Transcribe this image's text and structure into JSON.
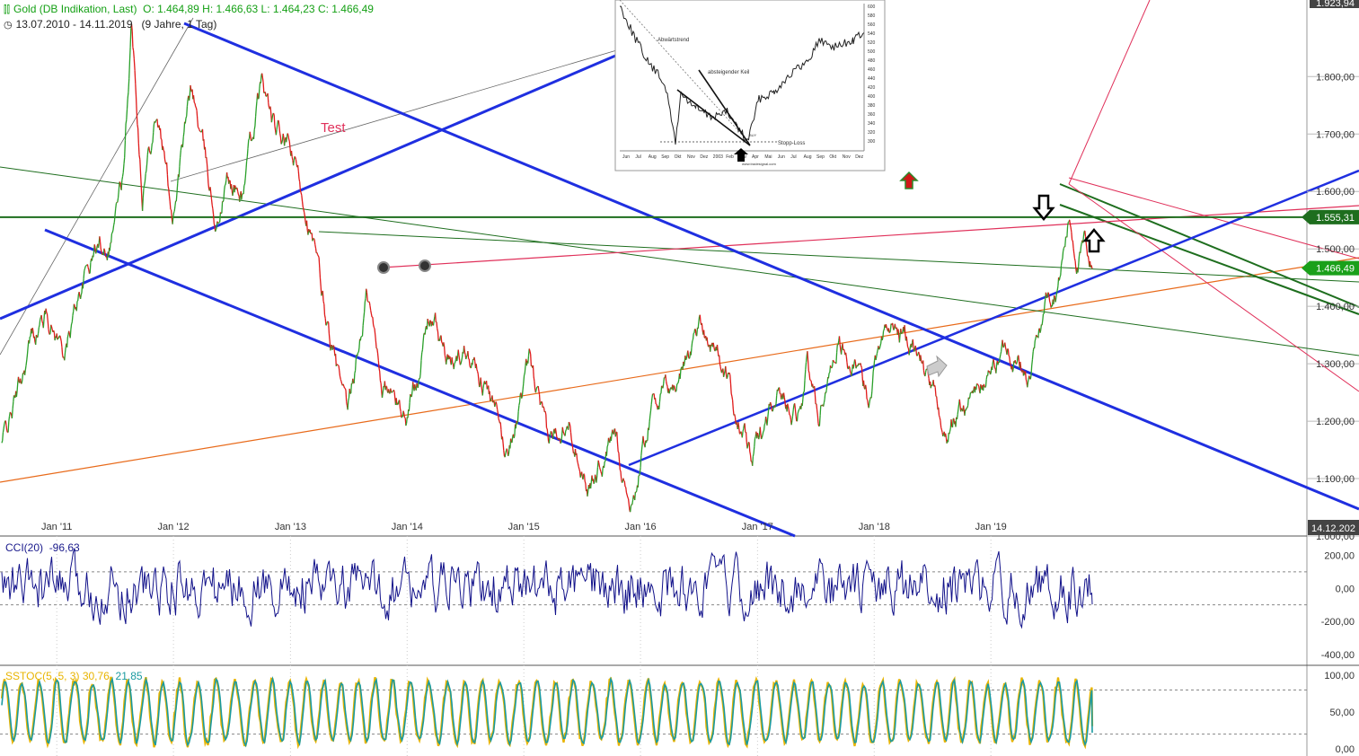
{
  "header": {
    "instrument_icon": "candles-icon",
    "title": "Gold (DB Indikation, Last)",
    "ohlc": "O: 1.464,89  H: 1.466,63  L: 1.464,23  C: 1.466,49",
    "clock_icon": "clock-icon",
    "range": "13.07.2010 - 14.11.2019",
    "period": "(9 Jahre, 1 Tag)"
  },
  "colors": {
    "up": "#2aa02a",
    "down": "#e01a1a",
    "trend_blue": "#1f2fe0",
    "green_line": "#1e6e1e",
    "pink_line": "#e0305a",
    "orange_line": "#e86a1a",
    "cci": "#12128a",
    "stoch_k": "#e8b400",
    "stoch_d": "#1a9aa0",
    "price_badge": "#1aa01a"
  },
  "chart_data": [
    {
      "type": "line",
      "title": "Gold (DB Indikation, Last)",
      "x_tick_labels": [
        "Jan '11",
        "Jan '12",
        "Jan '13",
        "Jan '14",
        "Jan '15",
        "Jan '16",
        "Jan '17",
        "Jan '18",
        "Jan '19"
      ],
      "y_tick_labels": [
        "1.000,00",
        "1.100,00",
        "1.200,00",
        "1.300,00",
        "1.400,00",
        "1.500,00",
        "1.600,00",
        "1.700,00",
        "1.800,00"
      ],
      "ylim": [
        1000,
        1924
      ],
      "axis_top_label": "1.923,94",
      "date_badge": "14.12.202",
      "horizontal_level": {
        "value": 1555.31,
        "label": "1.555,31"
      },
      "last_price": {
        "value": 1466.49,
        "label": "1.466,49"
      },
      "annotation": "Test",
      "series": [
        {
          "x": [
            "2010-07-13",
            "2010-09-01",
            "2010-10-15",
            "2010-12-01",
            "2011-01-28",
            "2011-03-15",
            "2011-05-01",
            "2011-06-15",
            "2011-08-01",
            "2011-08-22",
            "2011-09-06",
            "2011-09-26",
            "2011-11-08",
            "2011-12-29",
            "2012-02-28",
            "2012-05-16",
            "2012-06-15",
            "2012-08-01",
            "2012-10-04",
            "2012-11-15",
            "2012-12-31",
            "2013-02-20",
            "2013-04-15",
            "2013-06-28",
            "2013-08-28",
            "2013-10-15",
            "2013-12-31",
            "2014-03-14",
            "2014-05-15",
            "2014-07-10",
            "2014-09-01",
            "2014-11-06",
            "2015-01-22",
            "2015-03-17",
            "2015-05-18",
            "2015-07-24",
            "2015-10-14",
            "2015-12-03",
            "2016-02-11",
            "2016-04-20",
            "2016-07-06",
            "2016-09-01",
            "2016-10-06",
            "2016-12-15",
            "2017-02-27",
            "2017-05-09",
            "2017-06-06",
            "2017-07-10",
            "2017-09-08",
            "2017-12-12",
            "2018-01-25",
            "2018-04-11",
            "2018-06-01",
            "2018-08-16",
            "2018-10-15",
            "2018-12-31",
            "2019-02-20",
            "2019-05-02",
            "2019-06-25",
            "2019-08-01",
            "2019-09-04",
            "2019-10-01",
            "2019-10-25",
            "2019-11-14"
          ],
          "y": [
            1160,
            1250,
            1345,
            1390,
            1320,
            1430,
            1500,
            1520,
            1640,
            1885,
            1780,
            1610,
            1750,
            1565,
            1780,
            1540,
            1620,
            1590,
            1790,
            1700,
            1670,
            1575,
            1400,
            1195,
            1420,
            1270,
            1205,
            1390,
            1290,
            1335,
            1270,
            1140,
            1300,
            1150,
            1225,
            1085,
            1180,
            1050,
            1245,
            1260,
            1375,
            1320,
            1255,
            1130,
            1255,
            1220,
            1295,
            1210,
            1350,
            1240,
            1365,
            1350,
            1300,
            1175,
            1235,
            1282,
            1340,
            1270,
            1415,
            1445,
            1556,
            1480,
            1510,
            1466
          ]
        }
      ]
    },
    {
      "type": "line",
      "title": "CCI(20)",
      "value_label": "-96,63",
      "y_tick_labels": [
        "200,00",
        "0,00",
        "-200,00",
        "-400,00"
      ],
      "ylim": [
        -460,
        300
      ]
    },
    {
      "type": "line",
      "title": "SSTOC(5, 5, 3)",
      "series_values": [
        "30,76",
        "21,85"
      ],
      "y_tick_labels": [
        "100,00",
        "50,00",
        "0,00"
      ],
      "ylim": [
        -5,
        110
      ]
    }
  ],
  "inset": {
    "y_ticks": [
      "600",
      "580",
      "560",
      "540",
      "520",
      "500",
      "480",
      "460",
      "440",
      "420",
      "400",
      "380",
      "360",
      "340",
      "320",
      "300"
    ],
    "x_ticks": [
      "Jun",
      "Jul",
      "Aug",
      "Sep",
      "Okt",
      "Nov",
      "Dez",
      "2003",
      "Feb",
      "Mär",
      "Apr",
      "Mai",
      "Jun",
      "Jul",
      "Aug",
      "Sep",
      "Okt",
      "Nov",
      "Dez"
    ],
    "labels": [
      "Abwärtstrend",
      "absteigender Keil",
      "BUY",
      "Stopp-Loss",
      "www.tradesignal.com"
    ]
  }
}
